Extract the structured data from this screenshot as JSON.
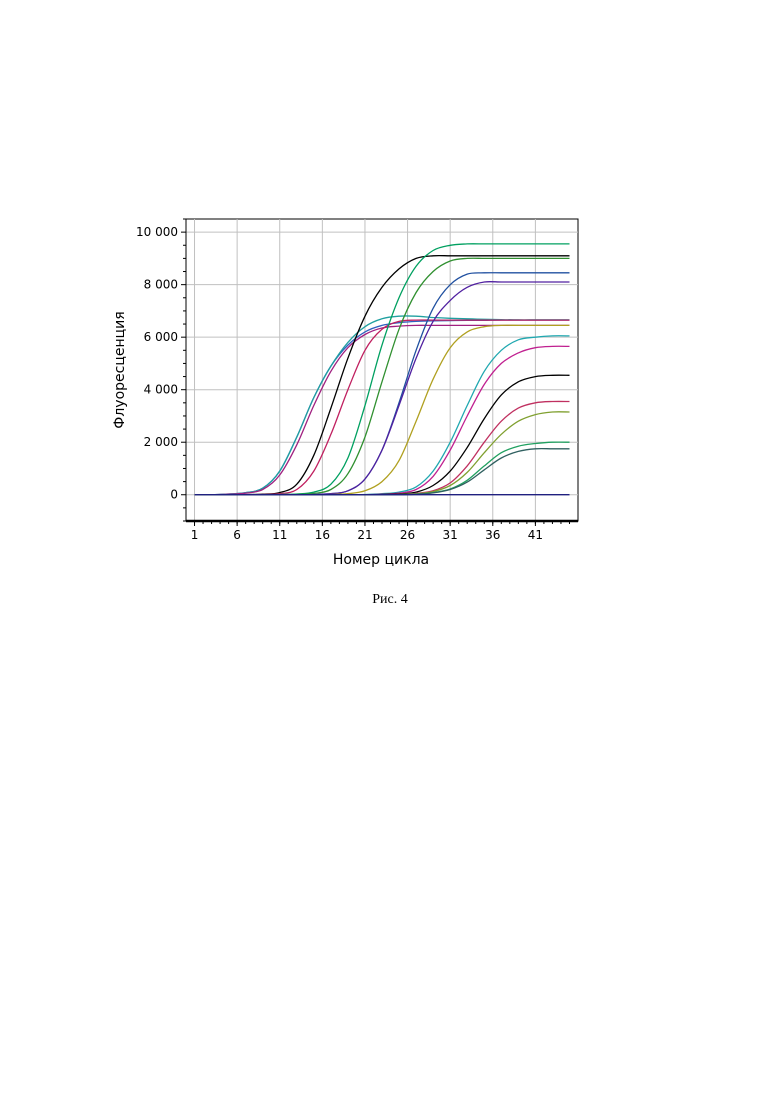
{
  "chart_data": {
    "type": "line",
    "title": "",
    "xlabel": "Номер цикла",
    "ylabel": "Флуоресценция",
    "xlim": [
      0,
      46
    ],
    "ylim": [
      -1000,
      10500
    ],
    "xticks": [
      1,
      6,
      11,
      16,
      21,
      26,
      31,
      36,
      41
    ],
    "xtick_labels": [
      "1",
      "6",
      "11",
      "16",
      "21",
      "26",
      "31",
      "36",
      "41"
    ],
    "yticks": [
      0,
      2000,
      4000,
      6000,
      8000,
      10000
    ],
    "ytick_labels": [
      "0",
      "2 000",
      "4 000",
      "6 000",
      "8 000",
      "10 000"
    ],
    "grid": true,
    "x": [
      1,
      3,
      5,
      7,
      9,
      11,
      13,
      15,
      17,
      19,
      21,
      23,
      25,
      27,
      29,
      31,
      33,
      35,
      37,
      39,
      41,
      43,
      45
    ],
    "series": [
      {
        "color": "#3060c0",
        "values": [
          0,
          0,
          30,
          80,
          250,
          900,
          2200,
          3700,
          4900,
          5700,
          6200,
          6450,
          6550,
          6600,
          6620,
          6630,
          6640,
          6640,
          6650,
          6650,
          6650,
          6650,
          6650
        ]
      },
      {
        "color": "#20a0a0",
        "values": [
          0,
          0,
          30,
          80,
          250,
          900,
          2200,
          3700,
          4900,
          5800,
          6400,
          6700,
          6800,
          6800,
          6750,
          6720,
          6700,
          6680,
          6670,
          6660,
          6660,
          6660,
          6660
        ]
      },
      {
        "color": "#a02080",
        "values": [
          0,
          0,
          20,
          60,
          200,
          750,
          1900,
          3400,
          4700,
          5600,
          6100,
          6350,
          6420,
          6450,
          6450,
          6450,
          6450,
          6450,
          6450,
          6450,
          6450,
          6450,
          6450
        ]
      },
      {
        "color": "#000000",
        "values": [
          0,
          0,
          0,
          5,
          20,
          80,
          400,
          1500,
          3300,
          5200,
          6800,
          7900,
          8600,
          9000,
          9100,
          9100,
          9100,
          9100,
          9100,
          9100,
          9100,
          9100,
          9100
        ]
      },
      {
        "color": "#c02060",
        "values": [
          0,
          0,
          0,
          0,
          10,
          40,
          200,
          900,
          2300,
          4000,
          5500,
          6300,
          6600,
          6650,
          6650,
          6650,
          6650,
          6650,
          6650,
          6650,
          6650,
          6650,
          6650
        ]
      },
      {
        "color": "#00a060",
        "values": [
          0,
          0,
          0,
          0,
          0,
          10,
          30,
          100,
          400,
          1400,
          3400,
          5700,
          7500,
          8700,
          9300,
          9500,
          9550,
          9550,
          9550,
          9550,
          9550,
          9550,
          9550
        ]
      },
      {
        "color": "#309030",
        "values": [
          0,
          0,
          0,
          0,
          0,
          0,
          10,
          50,
          200,
          800,
          2200,
          4300,
          6300,
          7700,
          8500,
          8900,
          9000,
          9000,
          9000,
          9000,
          9000,
          9000,
          9000
        ]
      },
      {
        "color": "#2050a0",
        "values": [
          0,
          0,
          0,
          0,
          0,
          0,
          0,
          10,
          40,
          150,
          600,
          1700,
          3500,
          5500,
          7100,
          8000,
          8400,
          8450,
          8450,
          8450,
          8450,
          8450,
          8450
        ]
      },
      {
        "color": "#5020a0",
        "values": [
          0,
          0,
          0,
          0,
          0,
          0,
          0,
          10,
          40,
          150,
          600,
          1700,
          3400,
          5200,
          6600,
          7400,
          7900,
          8100,
          8100,
          8100,
          8100,
          8100,
          8100
        ]
      },
      {
        "color": "#b0a020",
        "values": [
          0,
          0,
          0,
          0,
          0,
          0,
          0,
          0,
          10,
          40,
          150,
          500,
          1300,
          2800,
          4400,
          5600,
          6200,
          6400,
          6450,
          6450,
          6450,
          6450,
          6450
        ]
      },
      {
        "color": "#20a8b0",
        "values": [
          0,
          0,
          0,
          0,
          0,
          0,
          0,
          0,
          0,
          0,
          10,
          40,
          100,
          300,
          900,
          2000,
          3400,
          4700,
          5500,
          5900,
          6000,
          6050,
          6050
        ]
      },
      {
        "color": "#c02090",
        "values": [
          0,
          0,
          0,
          0,
          0,
          0,
          0,
          0,
          0,
          0,
          0,
          20,
          60,
          200,
          700,
          1700,
          3000,
          4200,
          5000,
          5400,
          5600,
          5650,
          5650
        ]
      },
      {
        "color": "#000000",
        "values": [
          0,
          0,
          0,
          0,
          0,
          0,
          0,
          0,
          0,
          0,
          0,
          10,
          30,
          100,
          350,
          900,
          1800,
          2900,
          3800,
          4300,
          4500,
          4550,
          4550
        ]
      },
      {
        "color": "#c03060",
        "values": [
          0,
          0,
          0,
          0,
          0,
          0,
          0,
          0,
          0,
          0,
          0,
          0,
          10,
          50,
          150,
          450,
          1100,
          2000,
          2800,
          3300,
          3500,
          3550,
          3550
        ]
      },
      {
        "color": "#80a030",
        "values": [
          0,
          0,
          0,
          0,
          0,
          0,
          0,
          0,
          0,
          0,
          0,
          0,
          10,
          40,
          120,
          350,
          850,
          1600,
          2300,
          2800,
          3050,
          3150,
          3150
        ]
      },
      {
        "color": "#20a060",
        "values": [
          0,
          0,
          0,
          0,
          0,
          0,
          0,
          0,
          0,
          0,
          0,
          0,
          0,
          20,
          80,
          220,
          550,
          1100,
          1600,
          1850,
          1950,
          2000,
          2000
        ]
      },
      {
        "color": "#306060",
        "values": [
          0,
          0,
          0,
          0,
          0,
          0,
          0,
          0,
          0,
          0,
          0,
          0,
          0,
          20,
          70,
          200,
          480,
          950,
          1400,
          1650,
          1750,
          1750,
          1750
        ]
      },
      {
        "color": "#202080",
        "values": [
          0,
          0,
          0,
          0,
          0,
          0,
          0,
          0,
          0,
          0,
          0,
          0,
          0,
          0,
          0,
          0,
          0,
          0,
          0,
          0,
          0,
          0,
          0
        ]
      }
    ]
  },
  "caption": "Рис. 4"
}
